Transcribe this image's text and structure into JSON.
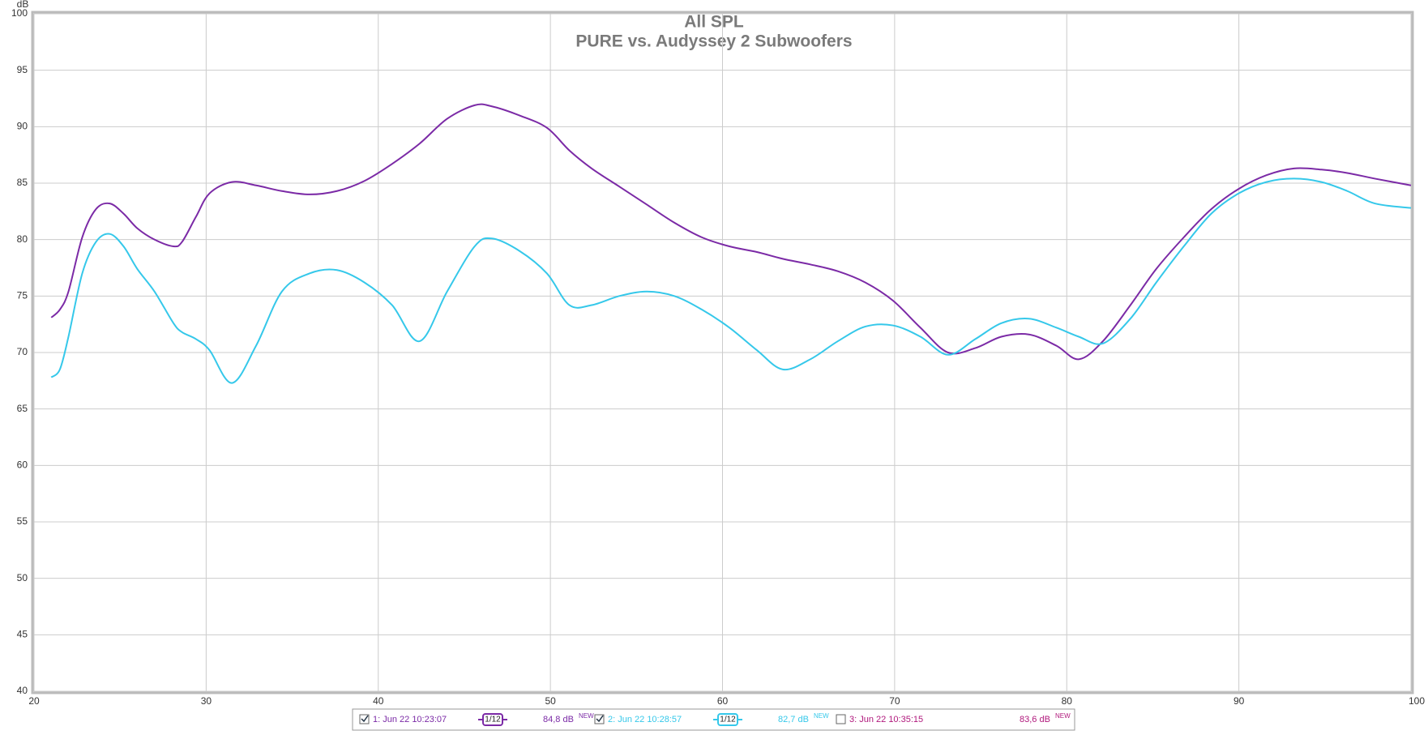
{
  "chart_data": {
    "type": "line",
    "title": "All SPL",
    "subtitle": "PURE vs. Audyssey 2 Subwoofers",
    "y_label": "dB",
    "x": [
      21.0,
      21.5,
      22.0,
      22.8,
      23.6,
      24.4,
      25.2,
      26.0,
      27.0,
      28.1,
      28.6,
      29.4,
      30.2,
      31.5,
      32.9,
      34.4,
      36.0,
      37.6,
      39.2,
      40.8,
      42.4,
      44.0,
      45.6,
      46.6,
      48.2,
      49.8,
      51.1,
      52.4,
      54.0,
      55.6,
      57.2,
      58.8,
      60.4,
      62.0,
      63.5,
      65.1,
      66.7,
      68.3,
      69.9,
      71.5,
      73.1,
      74.7,
      76.2,
      77.8,
      79.4,
      80.7,
      82.1,
      83.7,
      85.2,
      86.8,
      88.4,
      90.0,
      91.6,
      93.2,
      94.8,
      96.3,
      97.9,
      100.0
    ],
    "series": [
      {
        "name": "1: Jun 22 10:23:07",
        "color": "#7b2aa6",
        "smoothing": "1/12",
        "level": "84,8 dB",
        "checked": true,
        "values": [
          73.1,
          73.8,
          75.4,
          80.2,
          82.7,
          83.2,
          82.3,
          81.0,
          80.0,
          79.4,
          79.8,
          82.0,
          84.1,
          85.1,
          84.8,
          84.3,
          84.0,
          84.3,
          85.2,
          86.7,
          88.5,
          90.7,
          91.9,
          91.8,
          91.0,
          89.9,
          87.9,
          86.3,
          84.7,
          83.1,
          81.5,
          80.2,
          79.4,
          78.9,
          78.3,
          77.8,
          77.2,
          76.2,
          74.6,
          72.2,
          70.0,
          70.4,
          71.4,
          71.6,
          70.6,
          69.4,
          71.0,
          74.2,
          77.4,
          80.2,
          82.7,
          84.5,
          85.7,
          86.3,
          86.2,
          85.9,
          85.4,
          84.8
        ]
      },
      {
        "name": "2: Jun 22 10:28:57",
        "color": "#35c8ea",
        "smoothing": "1/12",
        "level": "82,7 dB",
        "checked": true,
        "values": [
          67.8,
          68.5,
          71.4,
          77.0,
          79.8,
          80.5,
          79.4,
          77.4,
          75.4,
          72.6,
          71.8,
          71.2,
          70.2,
          67.3,
          70.6,
          75.4,
          77.0,
          77.3,
          76.2,
          74.2,
          71.0,
          75.4,
          79.4,
          80.1,
          79.0,
          77.0,
          74.2,
          74.2,
          75.0,
          75.4,
          75.0,
          73.8,
          72.2,
          70.2,
          68.5,
          69.4,
          71.0,
          72.3,
          72.4,
          71.4,
          69.8,
          71.2,
          72.6,
          73.0,
          72.2,
          71.4,
          70.8,
          73.0,
          76.2,
          79.4,
          82.3,
          84.1,
          85.1,
          85.4,
          85.1,
          84.3,
          83.2,
          82.8
        ]
      }
    ],
    "hidden_series": [
      {
        "name": "3: Jun 22 10:35:15",
        "color": "#b0187c",
        "level": "83,6 dB",
        "checked": false
      }
    ],
    "level_tag": "NEW",
    "xlim": [
      20,
      100
    ],
    "xticks": [
      20,
      30,
      40,
      50,
      60,
      70,
      80,
      90,
      {
        "value": 100,
        "label": "100 Hz"
      }
    ],
    "ylim": [
      40,
      100
    ],
    "yticks": [
      40,
      45,
      50,
      55,
      60,
      65,
      70,
      75,
      80,
      85,
      90,
      95,
      100
    ],
    "grid": true
  }
}
